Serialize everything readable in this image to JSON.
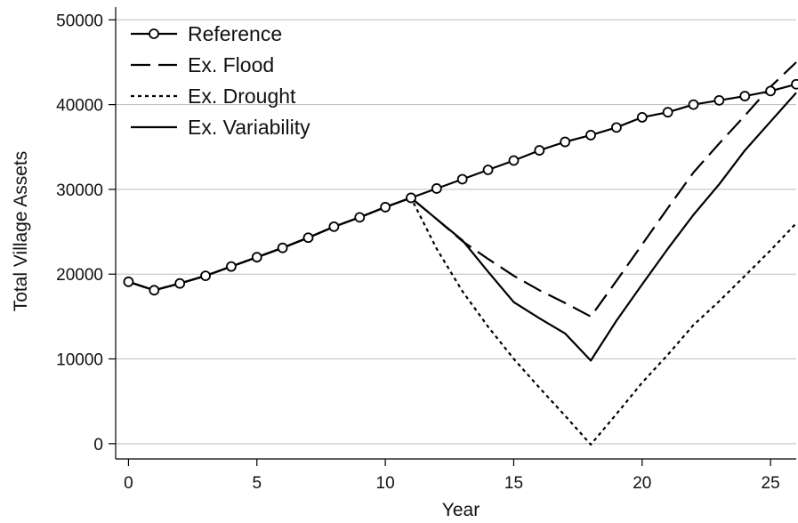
{
  "chart_data": {
    "type": "line",
    "title": "",
    "xlabel": "Year",
    "ylabel": "Total Village Assets",
    "xlim": [
      -0.5,
      26
    ],
    "ylim": [
      -1800,
      51500
    ],
    "xticks": [
      0,
      5,
      10,
      15,
      20,
      25
    ],
    "yticks": [
      0,
      10000,
      20000,
      30000,
      40000,
      50000
    ],
    "grid": "horizontal",
    "legend_position": "top-left",
    "series": [
      {
        "name": "Reference",
        "style": "solid-with-circles",
        "x": [
          0,
          1,
          2,
          3,
          4,
          5,
          6,
          7,
          8,
          9,
          10,
          11,
          12,
          13,
          14,
          15,
          16,
          17,
          18,
          19,
          20,
          21,
          22,
          23,
          24,
          25,
          26
        ],
        "y": [
          19100,
          18100,
          18900,
          19800,
          20900,
          22000,
          23100,
          24300,
          25600,
          26700,
          27900,
          29000,
          30100,
          31200,
          32300,
          33400,
          34600,
          35600,
          36400,
          37300,
          38500,
          39100,
          40000,
          40500,
          41000,
          41600,
          42400
        ]
      },
      {
        "name": "Ex. Flood",
        "style": "dashed",
        "x": [
          0,
          1,
          2,
          3,
          4,
          5,
          6,
          7,
          8,
          9,
          10,
          11,
          12,
          13,
          14,
          15,
          16,
          17,
          18,
          19,
          20,
          21,
          22,
          23,
          24,
          25,
          26
        ],
        "y": [
          19100,
          18100,
          18900,
          19800,
          20900,
          22000,
          23100,
          24300,
          25600,
          26700,
          27900,
          29000,
          26500,
          23900,
          21800,
          19800,
          18100,
          16600,
          15000,
          19200,
          23500,
          27800,
          32000,
          35400,
          38700,
          42100,
          45000
        ]
      },
      {
        "name": "Ex. Drought",
        "style": "dotted",
        "x": [
          0,
          1,
          2,
          3,
          4,
          5,
          6,
          7,
          8,
          9,
          10,
          11,
          12,
          13,
          14,
          15,
          16,
          17,
          18,
          19,
          20,
          21,
          22,
          23,
          24,
          25,
          26
        ],
        "y": [
          19100,
          18100,
          18900,
          19800,
          20900,
          22000,
          23100,
          24300,
          25600,
          26700,
          27900,
          29000,
          23000,
          18000,
          13800,
          10000,
          6600,
          3300,
          -100,
          3500,
          7200,
          10500,
          14000,
          16800,
          19800,
          22800,
          26000
        ]
      },
      {
        "name": "Ex. Variability",
        "style": "solid",
        "x": [
          0,
          1,
          2,
          3,
          4,
          5,
          6,
          7,
          8,
          9,
          10,
          11,
          12,
          13,
          14,
          15,
          16,
          17,
          18,
          19,
          20,
          21,
          22,
          23,
          24,
          25,
          26
        ],
        "y": [
          19100,
          18100,
          18900,
          19800,
          20900,
          22000,
          23100,
          24300,
          25600,
          26700,
          27900,
          29000,
          26500,
          24000,
          20300,
          16700,
          14800,
          13000,
          9800,
          14500,
          18800,
          23000,
          27000,
          30600,
          34600,
          38000,
          41400
        ]
      }
    ]
  }
}
